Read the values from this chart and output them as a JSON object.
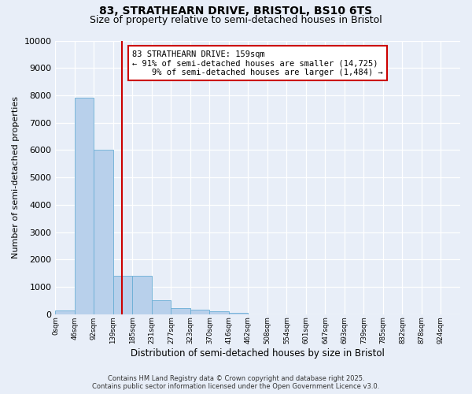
{
  "title1": "83, STRATHEARN DRIVE, BRISTOL, BS10 6TS",
  "title2": "Size of property relative to semi-detached houses in Bristol",
  "xlabel": "Distribution of semi-detached houses by size in Bristol",
  "ylabel": "Number of semi-detached properties",
  "bin_labels": [
    "0sqm",
    "46sqm",
    "92sqm",
    "139sqm",
    "185sqm",
    "231sqm",
    "277sqm",
    "323sqm",
    "370sqm",
    "416sqm",
    "462sqm",
    "508sqm",
    "554sqm",
    "601sqm",
    "647sqm",
    "693sqm",
    "739sqm",
    "785sqm",
    "832sqm",
    "878sqm",
    "924sqm"
  ],
  "bar_values": [
    150,
    7900,
    6000,
    1400,
    1400,
    500,
    220,
    170,
    100,
    50,
    0,
    0,
    0,
    0,
    0,
    0,
    0,
    0,
    0,
    0,
    0
  ],
  "bar_color": "#b8d0eb",
  "bar_edgecolor": "#6aaed6",
  "vline_x": 3.45,
  "vline_color": "#cc0000",
  "annotation_text": "83 STRATHEARN DRIVE: 159sqm\n← 91% of semi-detached houses are smaller (14,725)\n    9% of semi-detached houses are larger (1,484) →",
  "annotation_box_color": "#cc0000",
  "ylim": [
    0,
    10000
  ],
  "yticks": [
    0,
    1000,
    2000,
    3000,
    4000,
    5000,
    6000,
    7000,
    8000,
    9000,
    10000
  ],
  "background_color": "#e8eef8",
  "grid_color": "#ffffff",
  "footer1": "Contains HM Land Registry data © Crown copyright and database right 2025.",
  "footer2": "Contains public sector information licensed under the Open Government Licence v3.0."
}
